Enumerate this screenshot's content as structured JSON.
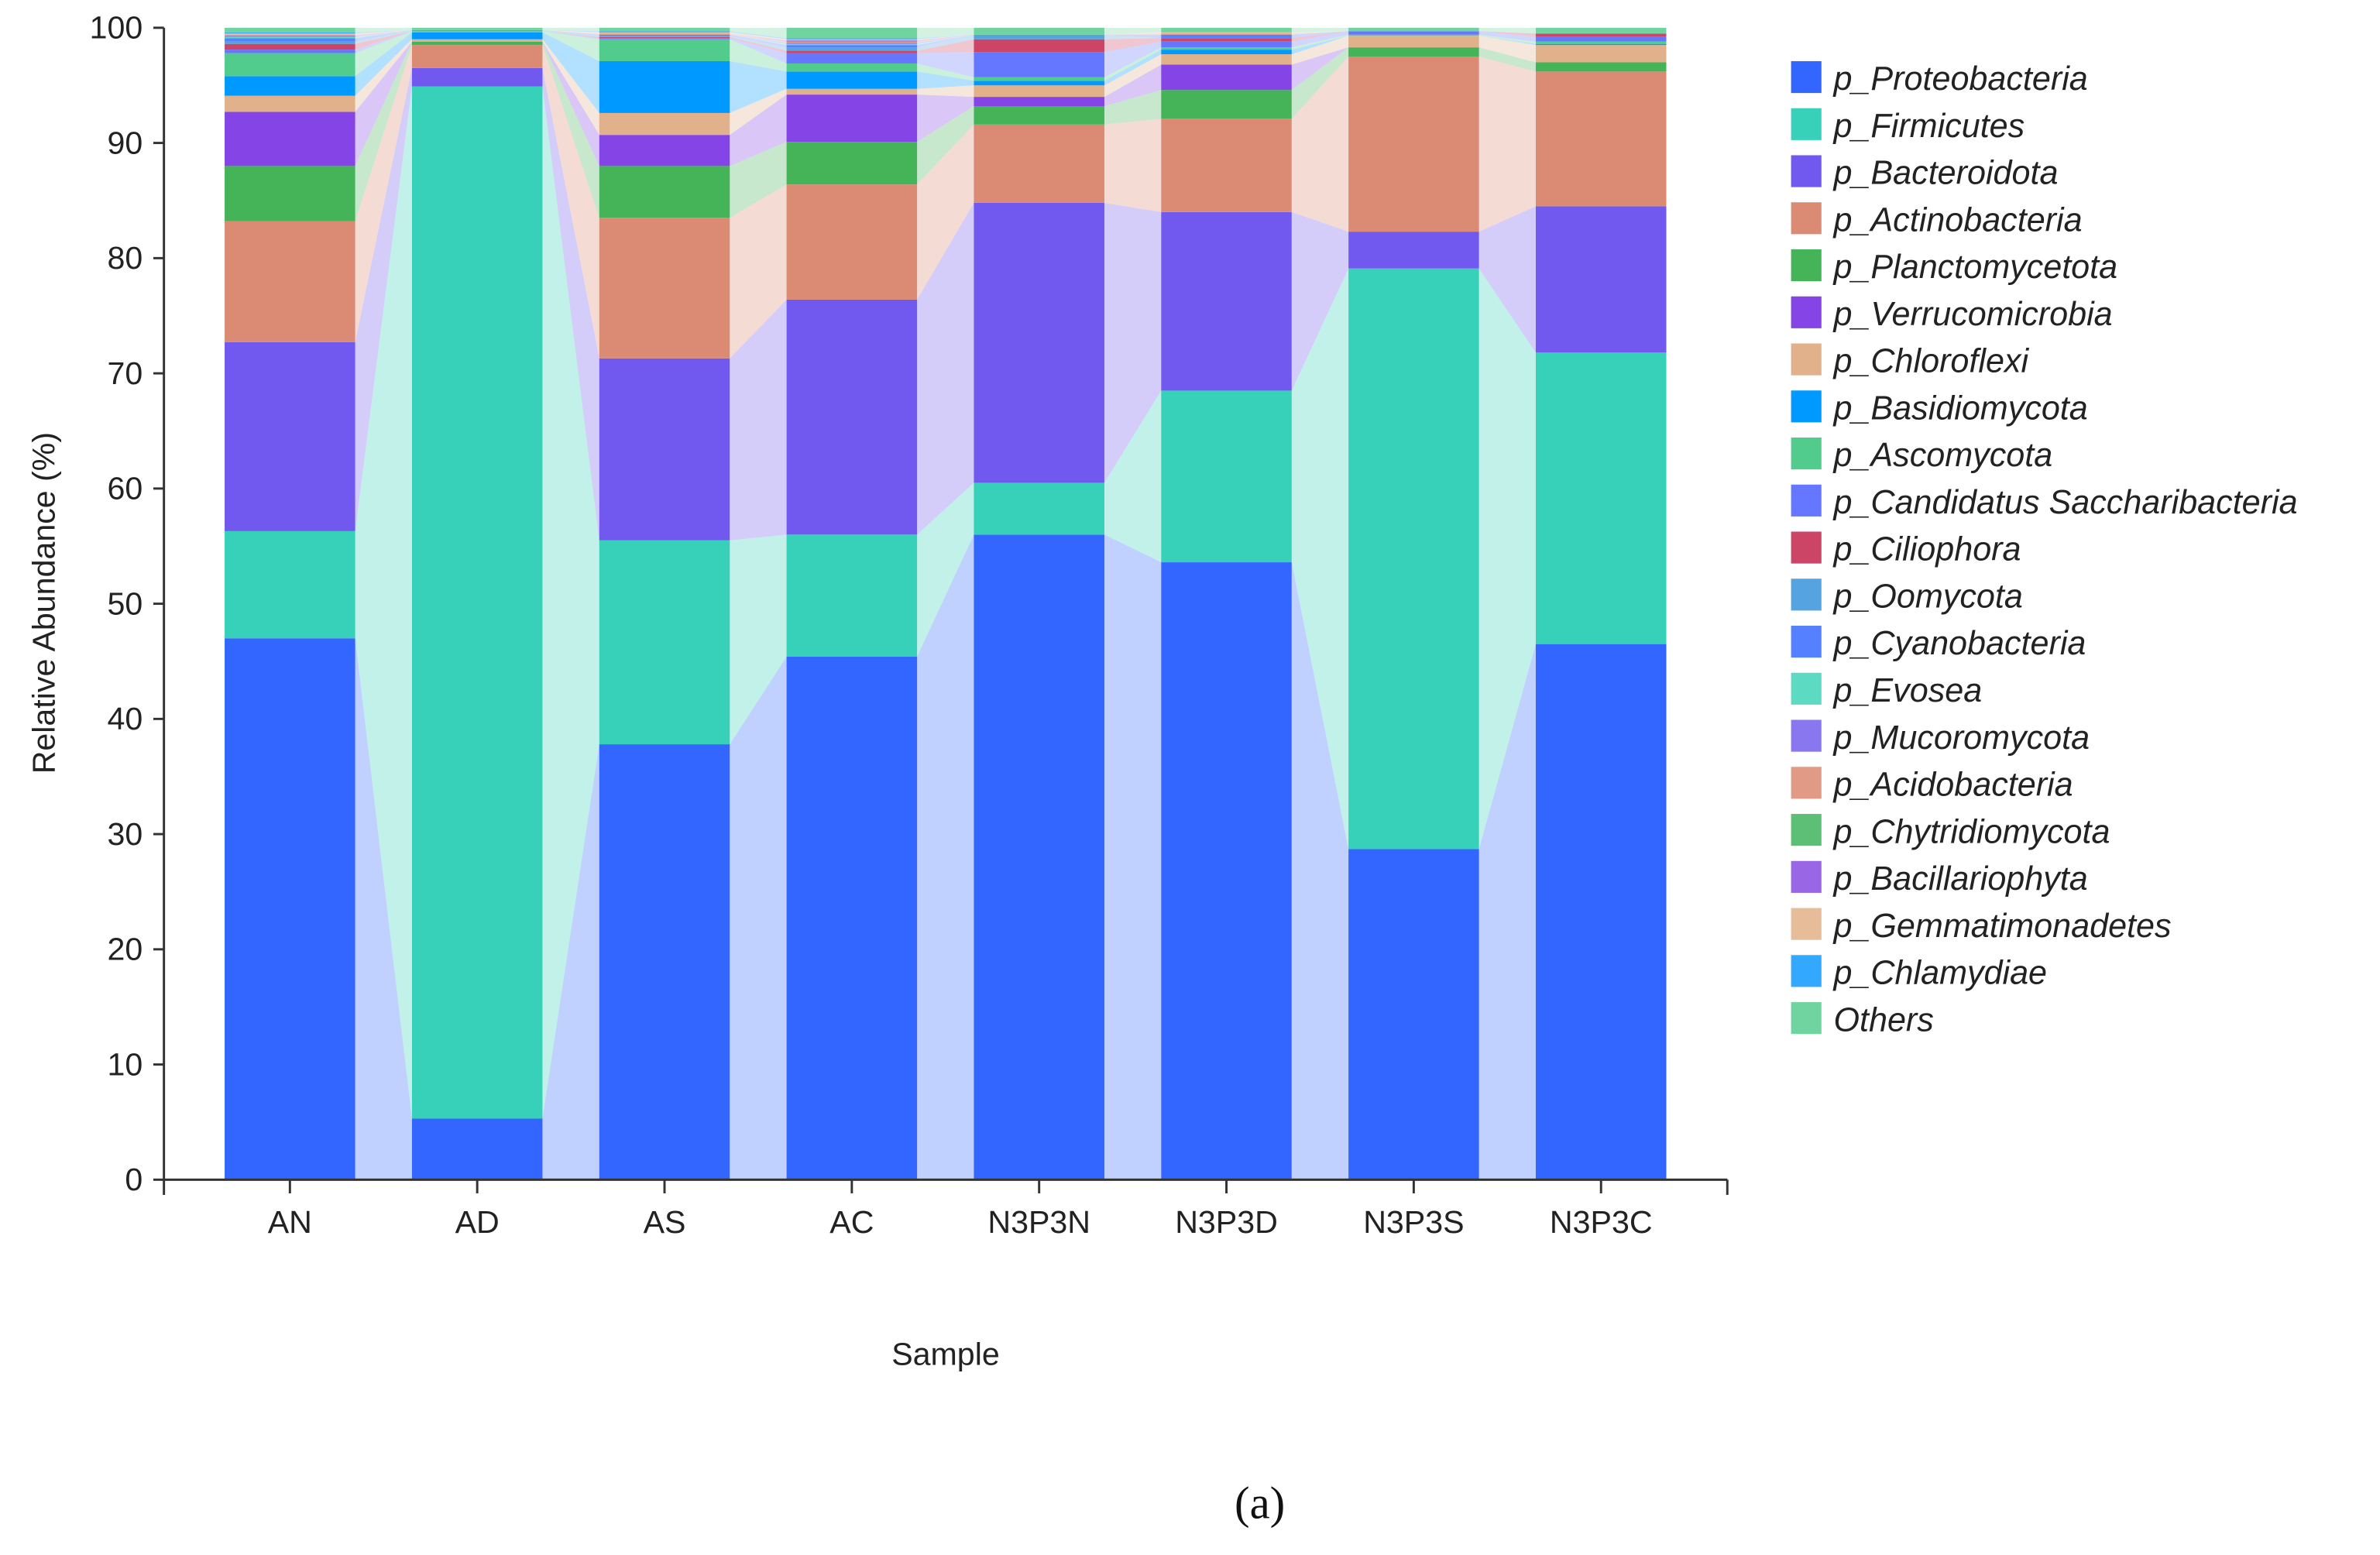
{
  "chart_data": {
    "type": "bar",
    "stacked": true,
    "flow_bands": true,
    "title": "",
    "xlabel": "Sample",
    "ylabel": "Relative Abundance (%)",
    "ylim": [
      0,
      100
    ],
    "yticks": [
      0,
      10,
      20,
      30,
      40,
      50,
      60,
      70,
      80,
      90,
      100
    ],
    "grid": false,
    "legend_position": "right",
    "caption": "(a)",
    "categories": [
      "AN",
      "AD",
      "AS",
      "AC",
      "N3P3N",
      "N3P3D",
      "N3P3S",
      "N3P3C"
    ],
    "series": [
      {
        "name": "p_Proteobacteria",
        "color": "#3366ff",
        "values": [
          47.0,
          5.3,
          37.8,
          45.4,
          56.0,
          53.6,
          28.7,
          46.5
        ]
      },
      {
        "name": "p_Firmicutes",
        "color": "#36d1b8",
        "values": [
          9.3,
          89.6,
          17.7,
          10.6,
          4.5,
          14.9,
          50.4,
          25.3
        ]
      },
      {
        "name": "p_Bacteroidota",
        "color": "#7159f0",
        "values": [
          16.4,
          1.6,
          15.8,
          20.4,
          24.3,
          15.5,
          3.2,
          12.7
        ]
      },
      {
        "name": "p_Actinobacteria",
        "color": "#db8b74",
        "values": [
          10.5,
          2.0,
          12.2,
          10.0,
          6.8,
          8.1,
          15.2,
          11.7
        ]
      },
      {
        "name": "p_Planctomycetota",
        "color": "#45b358",
        "values": [
          4.8,
          0.3,
          4.5,
          3.7,
          1.6,
          2.5,
          0.8,
          0.8
        ]
      },
      {
        "name": "p_Verrucomicrobia",
        "color": "#8544e5",
        "values": [
          4.7,
          0.0,
          2.7,
          4.1,
          0.8,
          2.2,
          0.0,
          0.0
        ]
      },
      {
        "name": "p_Chloroflexi",
        "color": "#e0b18a",
        "values": [
          1.4,
          0.2,
          1.9,
          0.5,
          1.0,
          0.9,
          1.0,
          1.5
        ]
      },
      {
        "name": "p_Basidiomycota",
        "color": "#0099ff",
        "values": [
          1.7,
          0.6,
          4.5,
          1.5,
          0.4,
          0.4,
          0.0,
          0.1
        ]
      },
      {
        "name": "p_Ascomycota",
        "color": "#52cc8c",
        "values": [
          2.0,
          0.1,
          1.9,
          0.7,
          0.3,
          0.2,
          0.1,
          0.2
        ]
      },
      {
        "name": "p_Candidatus Saccharibacteria",
        "color": "#6677ff",
        "values": [
          0.3,
          0.0,
          0.1,
          0.9,
          2.2,
          0.5,
          0.3,
          0.4
        ]
      },
      {
        "name": "p_Ciliophora",
        "color": "#cc4466",
        "values": [
          0.5,
          0.0,
          0.1,
          0.2,
          1.1,
          0.3,
          0.0,
          0.3
        ]
      },
      {
        "name": "p_Oomycota",
        "color": "#55a3e0",
        "values": [
          0.2,
          0.1,
          0.1,
          0.3,
          0.4,
          0.0,
          0.0,
          0.0
        ]
      },
      {
        "name": "p_Cyanobacteria",
        "color": "#5580ff",
        "values": [
          0.3,
          0.0,
          0.1,
          0.2,
          0.0,
          0.3,
          0.0,
          0.0
        ]
      },
      {
        "name": "p_Evosea",
        "color": "#5cdbc2",
        "values": [
          0.1,
          0.0,
          0.0,
          0.1,
          0.0,
          0.0,
          0.0,
          0.0
        ]
      },
      {
        "name": "p_Mucoromycota",
        "color": "#8877ee",
        "values": [
          0.1,
          0.0,
          0.0,
          0.1,
          0.0,
          0.0,
          0.0,
          0.0
        ]
      },
      {
        "name": "p_Acidobacteria",
        "color": "#e09a85",
        "values": [
          0.1,
          0.0,
          0.1,
          0.1,
          0.0,
          0.1,
          0.0,
          0.0
        ]
      },
      {
        "name": "p_Chytridiomycota",
        "color": "#5cbf75",
        "values": [
          0.0,
          0.0,
          0.0,
          0.0,
          0.0,
          0.0,
          0.0,
          0.0
        ]
      },
      {
        "name": "p_Bacillariophyta",
        "color": "#9966e6",
        "values": [
          0.0,
          0.0,
          0.0,
          0.1,
          0.0,
          0.0,
          0.0,
          0.0
        ]
      },
      {
        "name": "p_Gemmatimonadetes",
        "color": "#e6bc99",
        "values": [
          0.1,
          0.0,
          0.1,
          0.1,
          0.0,
          0.1,
          0.0,
          0.0
        ]
      },
      {
        "name": "p_Chlamydiae",
        "color": "#33a8ff",
        "values": [
          0.1,
          0.0,
          0.1,
          0.1,
          0.0,
          0.0,
          0.0,
          0.0
        ]
      },
      {
        "name": "Others",
        "color": "#70d4a0",
        "values": [
          0.4,
          0.2,
          0.3,
          0.9,
          0.6,
          0.4,
          0.3,
          0.5
        ]
      }
    ]
  }
}
